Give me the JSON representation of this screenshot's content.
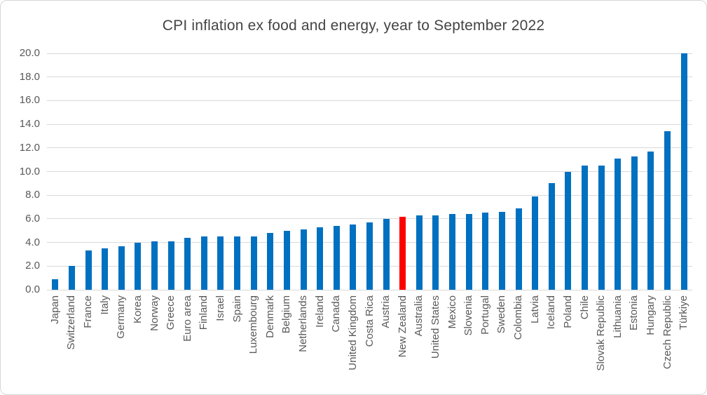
{
  "chart_data": {
    "type": "bar",
    "title": "CPI inflation ex food and energy, year to September 2022",
    "xlabel": "",
    "ylabel": "",
    "ylim": [
      0,
      20
    ],
    "grid": true,
    "x_tick_rotation": 90,
    "y_ticks": [
      0,
      2,
      4,
      6,
      8,
      10,
      12,
      14,
      16,
      18,
      20
    ],
    "y_tick_labels": [
      "0.0",
      "2.0",
      "4.0",
      "6.0",
      "8.0",
      "10.0",
      "12.0",
      "14.0",
      "16.0",
      "18.0",
      "20.0"
    ],
    "categories": [
      "Japan",
      "Switzerland",
      "France",
      "Italy",
      "Germany",
      "Korea",
      "Norway",
      "Greece",
      "Euro area",
      "Finland",
      "Israel",
      "Spain",
      "Luxembourg",
      "Denmark",
      "Belgium",
      "Netherlands",
      "Ireland",
      "Canada",
      "United Kingdom",
      "Costa Rica",
      "Austria",
      "New Zealand",
      "Australia",
      "United States",
      "Mexico",
      "Slovenia",
      "Portugal",
      "Sweden",
      "Colombia",
      "Latvia",
      "Iceland",
      "Poland",
      "Chile",
      "Slovak Republic",
      "Lithuania",
      "Estonia",
      "Hungary",
      "Czech Republic",
      "Türkiye"
    ],
    "values": [
      0.9,
      2.0,
      3.3,
      3.5,
      3.7,
      4.0,
      4.1,
      4.1,
      4.4,
      4.5,
      4.5,
      4.5,
      4.5,
      4.8,
      5.0,
      5.1,
      5.3,
      5.4,
      5.5,
      5.7,
      6.0,
      6.2,
      6.3,
      6.3,
      6.4,
      6.4,
      6.5,
      6.6,
      6.9,
      7.9,
      9.0,
      10.0,
      10.5,
      10.5,
      11.1,
      11.3,
      11.7,
      13.4,
      20.0
    ],
    "highlight_category": "New Zealand",
    "colors": {
      "bar": "#0070C0",
      "highlight": "#FF0000",
      "gridline": "#D9D9D9",
      "axis_text": "#595959",
      "title_text": "#444444"
    },
    "legend": null
  }
}
